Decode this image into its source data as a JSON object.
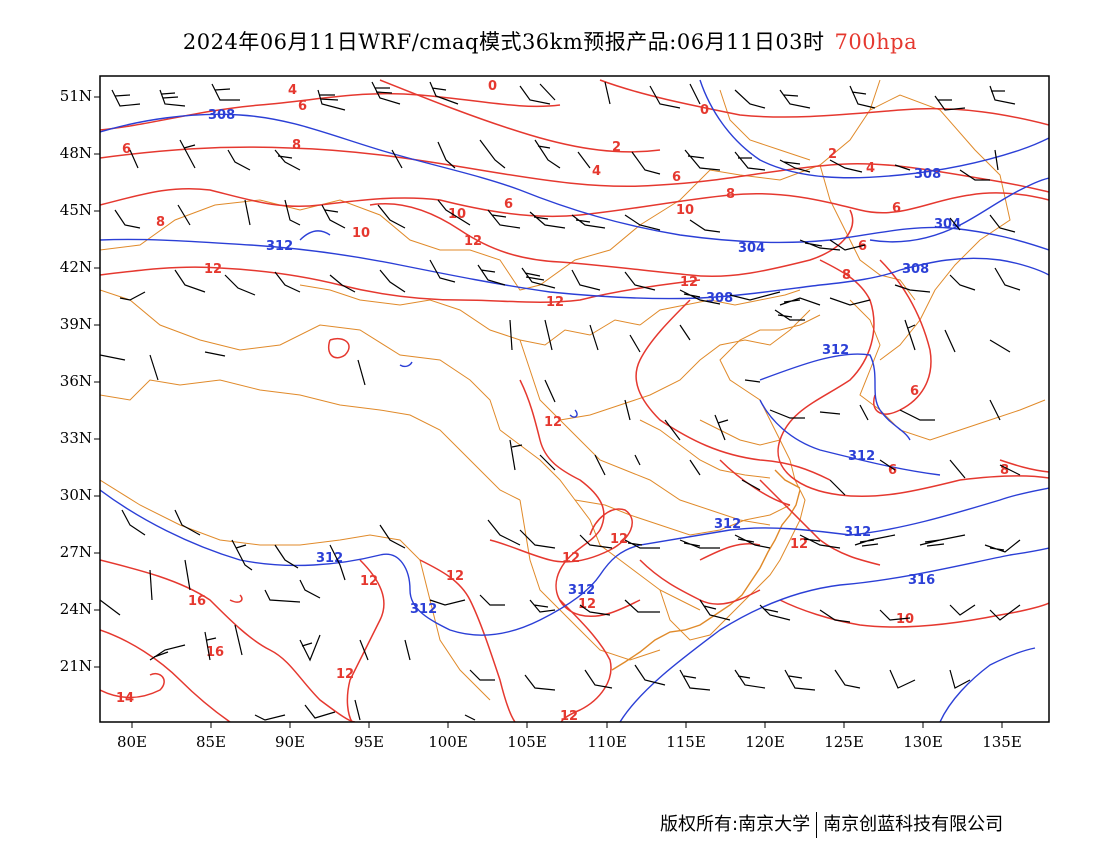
{
  "title": {
    "main": "2024年06月11日WRF/cmaq模式36km预报产品:06月11日03时",
    "level": "700hpa"
  },
  "axes": {
    "lat_labels": [
      "51N",
      "48N",
      "45N",
      "42N",
      "39N",
      "36N",
      "33N",
      "30N",
      "27N",
      "24N",
      "21N"
    ],
    "lon_labels": [
      "80E",
      "85E",
      "90E",
      "95E",
      "100E",
      "105E",
      "110E",
      "115E",
      "120E",
      "125E",
      "130E",
      "135E"
    ]
  },
  "colors": {
    "temperature_contour": "#e5382f",
    "geopotential_contour": "#2b3fd6",
    "boundary": "#e08a2a",
    "wind_barb": "#000000"
  },
  "contour_labels": {
    "temperature": [
      "4",
      "6",
      "0",
      "0",
      "6",
      "8",
      "2",
      "4",
      "2",
      "4",
      "6",
      "8",
      "6",
      "6",
      "10",
      "8",
      "10",
      "10",
      "12",
      "6",
      "12",
      "8",
      "12",
      "12",
      "6",
      "12",
      "6",
      "8",
      "12",
      "12",
      "12",
      "12",
      "12",
      "16",
      "16",
      "12",
      "12",
      "14",
      "12",
      "10"
    ],
    "geopotential": [
      "308",
      "312",
      "304",
      "304",
      "308",
      "308",
      "312",
      "312",
      "312",
      "312",
      "312",
      "316",
      "308",
      "312",
      "312"
    ]
  },
  "footer": {
    "copyright": "版权所有:南京大学",
    "company": "南京创蓝科技有限公司"
  }
}
